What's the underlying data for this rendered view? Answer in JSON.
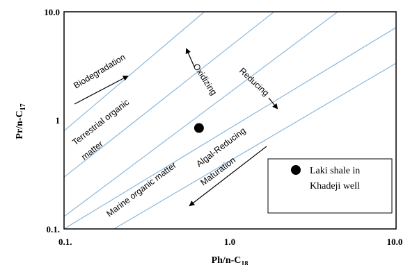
{
  "chart_data": {
    "type": "scatter",
    "title": "",
    "x_scale": "log",
    "y_scale": "log",
    "xlim": [
      0.1,
      10.0
    ],
    "ylim": [
      0.1,
      10.0
    ],
    "grid": false,
    "x_ticks": [
      "0.1.",
      "1.0",
      "10.0"
    ],
    "y_ticks": [
      "0.1.",
      "1",
      "10.0"
    ],
    "xlabel": {
      "main": "Ph/n-C",
      "sub": "18"
    },
    "ylabel": {
      "main": "Pr/n-C",
      "sub": "17"
    },
    "lines": [
      {
        "points": [
          [
            0.1,
            0.8
          ],
          [
            0.7,
            10.0
          ]
        ]
      },
      {
        "points": [
          [
            0.1,
            0.3
          ],
          [
            1.84,
            10.0
          ]
        ]
      },
      {
        "points": [
          [
            0.1,
            0.13
          ],
          [
            4.45,
            10.0
          ]
        ]
      },
      {
        "points": [
          [
            0.1,
            0.1
          ],
          [
            10.0,
            7.17
          ]
        ]
      },
      {
        "points": [
          [
            0.2,
            0.1
          ],
          [
            10.0,
            3.36
          ]
        ]
      }
    ],
    "points": [
      {
        "x": 0.65,
        "y": 0.85,
        "series": "Laki shale in Khadeji well"
      }
    ],
    "legend": {
      "position": "bottom-right",
      "lines": [
        "Laki shale in",
        "Khadeji well"
      ]
    },
    "annotations": {
      "biodegradation": "Biodegradation",
      "oxidizing": "Oxidizing",
      "reducing": "Reducing",
      "terrestrial_line1": "Terrestrial organic",
      "terrestrial_line2": "matter",
      "marine": "Marine organic matter",
      "algal": "Algal-Reducing",
      "maturation": "Maturation"
    },
    "colors": {
      "guide_line": "#8cb8dc",
      "axis": "#000000",
      "marker": "#000000"
    }
  }
}
